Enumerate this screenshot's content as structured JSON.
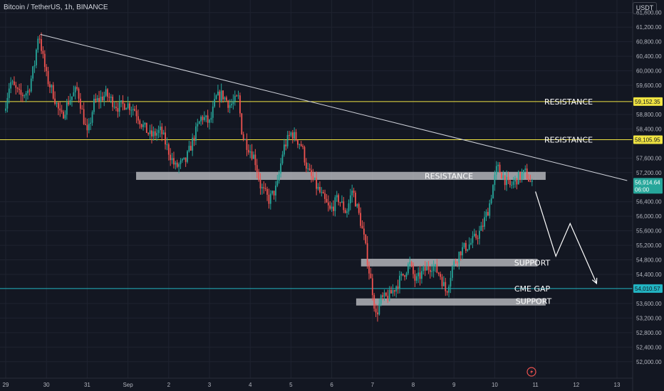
{
  "header": {
    "symbol_title": "Bitcoin / TetherUS, 1h, BINANCE",
    "currency": "USDT"
  },
  "chart_data": {
    "type": "candlestick",
    "symbol": "Bitcoin / TetherUS",
    "interval": "1h",
    "exchange": "BINANCE",
    "x_ticks": [
      "29",
      "30",
      "31",
      "Sep",
      "2",
      "3",
      "4",
      "5",
      "6",
      "7",
      "8",
      "9",
      "10",
      "11",
      "12",
      "13"
    ],
    "y_ticks": [
      61600,
      61200,
      60800,
      60400,
      60000,
      59600,
      58800,
      58400,
      57600,
      57200,
      56400,
      56000,
      55600,
      55200,
      54800,
      54400,
      53600,
      53200,
      52800,
      52400,
      52000
    ],
    "y_tick_labels": [
      "61,600.00",
      "61,200.00",
      "60,800.00",
      "60,400.00",
      "60,000.00",
      "59,600.00",
      "58,800.00",
      "58,400.00",
      "57,600.00",
      "57,200.00",
      "56,400.00",
      "56,000.00",
      "55,600.00",
      "55,200.00",
      "54,800.00",
      "54,400.00",
      "53,600.00",
      "53,200.00",
      "52,800.00",
      "52,400.00",
      "52,000.00"
    ],
    "ylim": [
      51850,
      62200
    ],
    "colors": {
      "up": "#26a69a",
      "down": "#ef5350",
      "resistance_line": "#f0e442",
      "cme_line": "#22b5c3",
      "zone": "#c8cace",
      "trendline": "#d1d4dc",
      "projection": "#ffffff"
    },
    "price_path": [
      [
        29.0,
        58900
      ],
      [
        29.15,
        59700
      ],
      [
        29.4,
        59300
      ],
      [
        29.6,
        59450
      ],
      [
        29.75,
        60200
      ],
      [
        29.85,
        61100
      ],
      [
        29.95,
        60400
      ],
      [
        30.05,
        59800
      ],
      [
        30.2,
        59400
      ],
      [
        30.4,
        58700
      ],
      [
        30.6,
        59200
      ],
      [
        30.8,
        59500
      ],
      [
        30.95,
        58700
      ],
      [
        31.05,
        58200
      ],
      [
        31.2,
        59100
      ],
      [
        31.5,
        59350
      ],
      [
        31.8,
        59000
      ],
      [
        32.0,
        59100
      ],
      [
        32.2,
        58950
      ],
      [
        32.4,
        58500
      ],
      [
        32.6,
        58200
      ],
      [
        32.85,
        58350
      ],
      [
        33.0,
        57900
      ],
      [
        33.2,
        57350
      ],
      [
        33.45,
        57500
      ],
      [
        33.7,
        58300
      ],
      [
        33.85,
        58750
      ],
      [
        34.05,
        58550
      ],
      [
        34.2,
        59250
      ],
      [
        34.35,
        59350
      ],
      [
        34.55,
        59050
      ],
      [
        34.75,
        59250
      ],
      [
        34.85,
        58200
      ],
      [
        35.0,
        57900
      ],
      [
        35.15,
        57600
      ],
      [
        35.3,
        56800
      ],
      [
        35.5,
        56450
      ],
      [
        35.7,
        56800
      ],
      [
        35.85,
        57850
      ],
      [
        36.05,
        58300
      ],
      [
        36.3,
        57950
      ],
      [
        36.45,
        57250
      ],
      [
        36.6,
        56950
      ],
      [
        36.8,
        56550
      ],
      [
        37.0,
        56150
      ],
      [
        37.2,
        56500
      ],
      [
        37.4,
        56100
      ],
      [
        37.55,
        56750
      ],
      [
        37.75,
        55850
      ],
      [
        37.85,
        55300
      ],
      [
        37.95,
        54550
      ],
      [
        38.05,
        53900
      ],
      [
        38.12,
        53250
      ],
      [
        38.25,
        53700
      ],
      [
        38.45,
        53800
      ],
      [
        38.6,
        54050
      ],
      [
        38.8,
        54400
      ],
      [
        38.95,
        54700
      ],
      [
        39.1,
        54200
      ],
      [
        39.3,
        54500
      ],
      [
        39.5,
        54650
      ],
      [
        39.7,
        54400
      ],
      [
        39.85,
        53900
      ],
      [
        40.0,
        54600
      ],
      [
        40.2,
        55050
      ],
      [
        40.45,
        55250
      ],
      [
        40.7,
        55600
      ],
      [
        40.9,
        56250
      ],
      [
        41.0,
        56850
      ],
      [
        41.1,
        57350
      ],
      [
        41.25,
        57100
      ],
      [
        41.4,
        56800
      ],
      [
        41.6,
        57050
      ],
      [
        41.8,
        57200
      ],
      [
        41.95,
        56850
      ]
    ],
    "resistance_levels": [
      {
        "price": 59152.35,
        "label": "RESISTANCE",
        "tag": "59,152.35"
      },
      {
        "price": 58105.95,
        "label": "RESISTANCE",
        "tag": "58,105.95"
      }
    ],
    "cme_gap": {
      "price": 54010.57,
      "label": "CME GAP",
      "tag": "54,010.57"
    },
    "zones": [
      {
        "label": "RESISTANCE",
        "x_from": 32.2,
        "x_to": 42.25,
        "y_low": 57000,
        "y_high": 57220
      },
      {
        "label": "SUPPORT",
        "x_from": 37.72,
        "x_to": 42.05,
        "y_low": 54620,
        "y_high": 54830
      },
      {
        "label": "SUPPORT",
        "x_from": 37.6,
        "x_to": 42.25,
        "y_low": 53600,
        "y_high": 53740
      }
    ],
    "trendline": {
      "from": [
        29.85,
        61000
      ],
      "to": [
        44.25,
        56980
      ]
    },
    "projection_path": [
      [
        42.0,
        56680
      ],
      [
        42.5,
        54900
      ],
      [
        42.85,
        55800
      ],
      [
        43.5,
        54150
      ]
    ],
    "last_price": {
      "value": "56,914.64",
      "countdown": "06:00"
    }
  }
}
